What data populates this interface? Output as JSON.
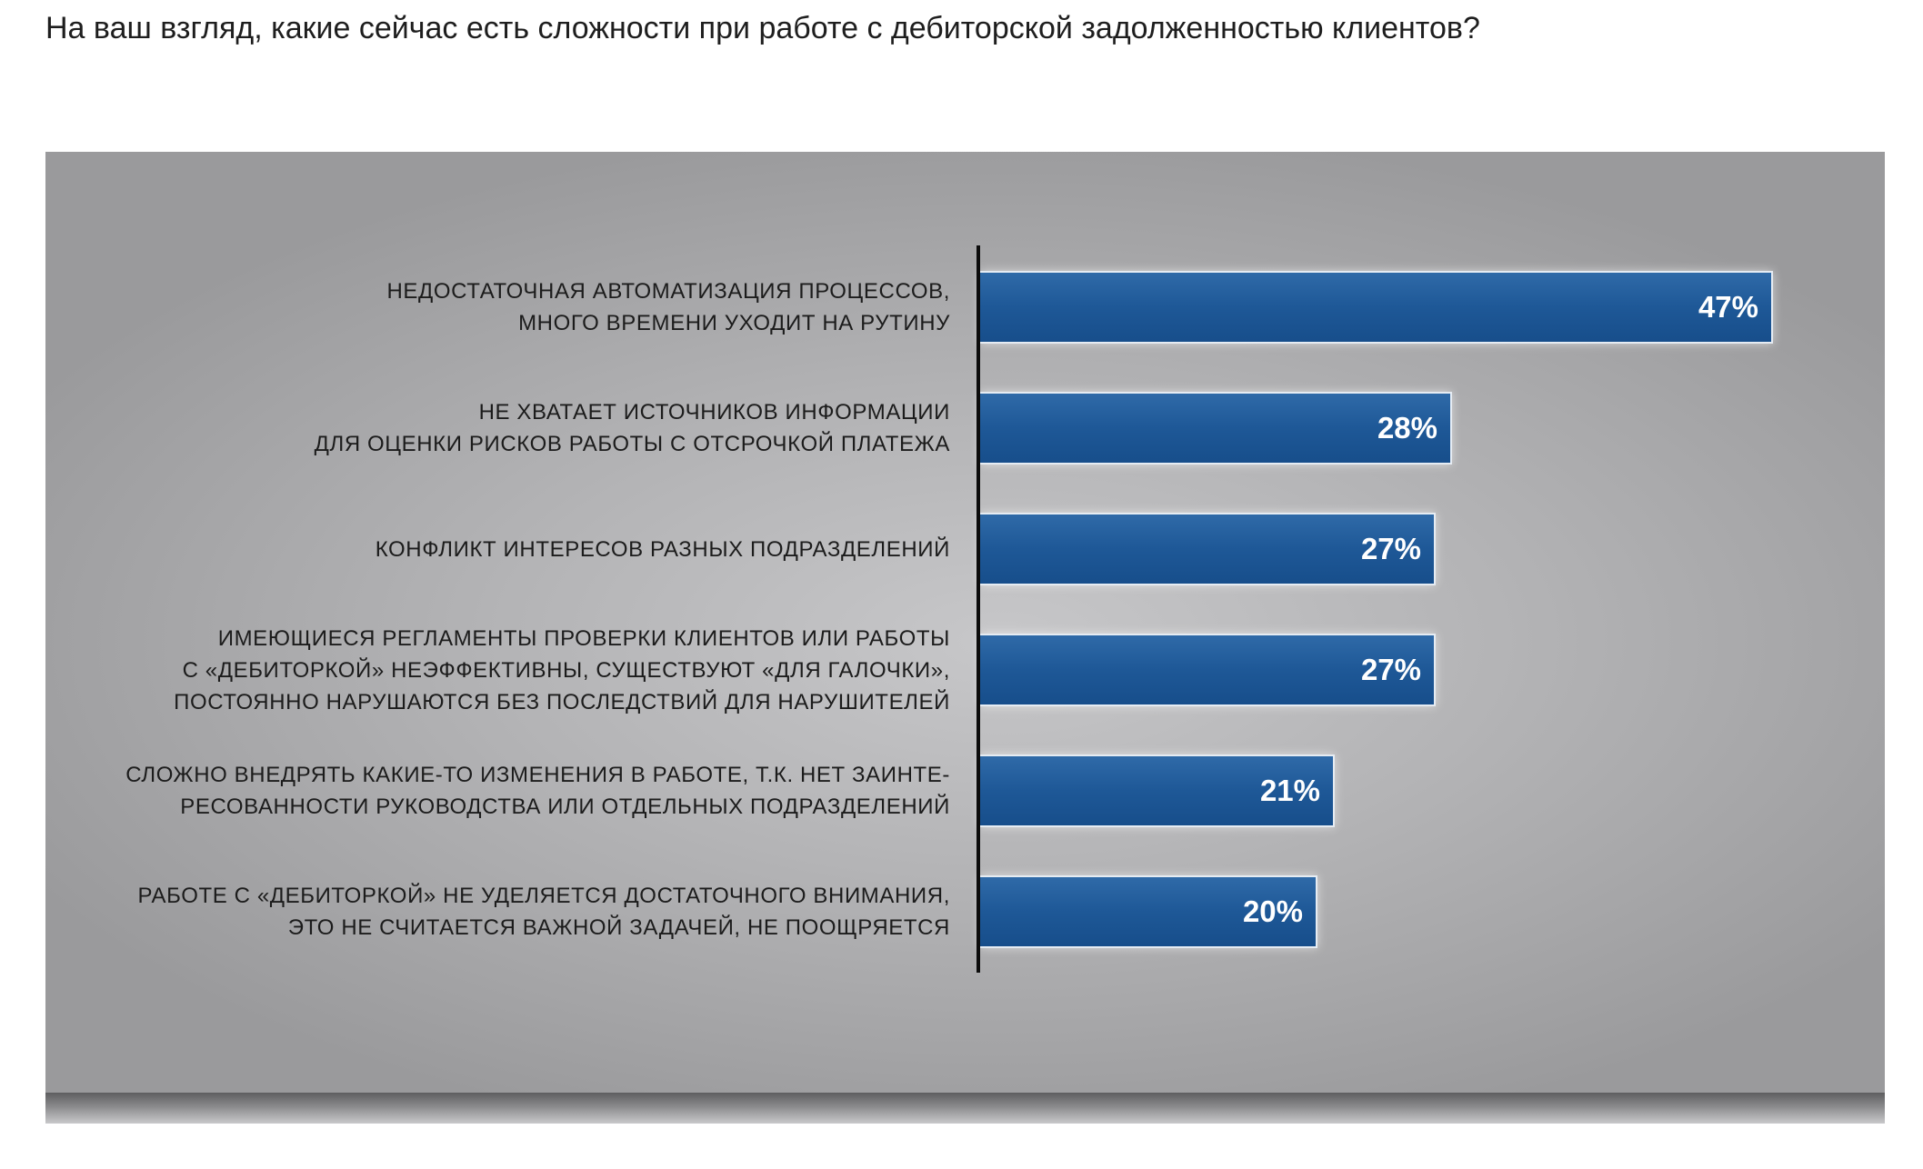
{
  "page_title": "На ваш взгляд, какие сейчас есть сложности при работе с дебиторской задолженностью клиентов?",
  "colors": {
    "bar": "#1e5897",
    "panel": "#b4b4b6",
    "text": "#1c1c1c"
  },
  "chart_data": {
    "type": "bar",
    "orientation": "horizontal",
    "title": "На ваш взгляд, какие сейчас есть сложности при работе с дебиторской задолженностью клиентов?",
    "grid": false,
    "categories": [
      [
        "НЕДОСТАТОЧНАЯ АВТОМАТИЗАЦИЯ ПРОЦЕССОВ,",
        "МНОГО ВРЕМЕНИ УХОДИТ НА РУТИНУ"
      ],
      [
        "НЕ ХВАТАЕТ ИСТОЧНИКОВ ИНФОРМАЦИИ",
        "ДЛЯ ОЦЕНКИ РИСКОВ РАБОТЫ С ОТСРОЧКОЙ ПЛАТЕЖА"
      ],
      [
        "КОНФЛИКТ ИНТЕРЕСОВ РАЗНЫХ ПОДРАЗДЕЛЕНИЙ"
      ],
      [
        "ИМЕЮЩИЕСЯ РЕГЛАМЕНТЫ ПРОВЕРКИ КЛИЕНТОВ ИЛИ РАБОТЫ",
        "С «ДЕБИТОРКОЙ» НЕЭФФЕКТИВНЫ, СУЩЕСТВУЮТ «ДЛЯ ГАЛОЧКИ»,",
        "ПОСТОЯННО НАРУШАЮТСЯ БЕЗ ПОСЛЕДСТВИЙ ДЛЯ НАРУШИТЕЛЕЙ"
      ],
      [
        "СЛОЖНО ВНЕДРЯТЬ КАКИЕ-ТО ИЗМЕНЕНИЯ В РАБОТЕ, Т.К. НЕТ ЗАИНТЕ-",
        "РЕСОВАННОСТИ РУКОВОДСТВА ИЛИ ОТДЕЛЬНЫХ ПОДРАЗДЕЛЕНИЙ"
      ],
      [
        "РАБОТЕ С «ДЕБИТОРКОЙ» НЕ УДЕЛЯЕТСЯ ДОСТАТОЧНОГО ВНИМАНИЯ,",
        "ЭТО НЕ СЧИТАЕТСЯ ВАЖНОЙ ЗАДАЧЕЙ, НЕ ПООЩРЯЕТСЯ"
      ]
    ],
    "values": [
      47,
      28,
      27,
      27,
      21,
      20
    ],
    "value_labels": [
      "47%",
      "28%",
      "27%",
      "27%",
      "21%",
      "20%"
    ],
    "unit": "%",
    "xlim": [
      0,
      47
    ]
  }
}
